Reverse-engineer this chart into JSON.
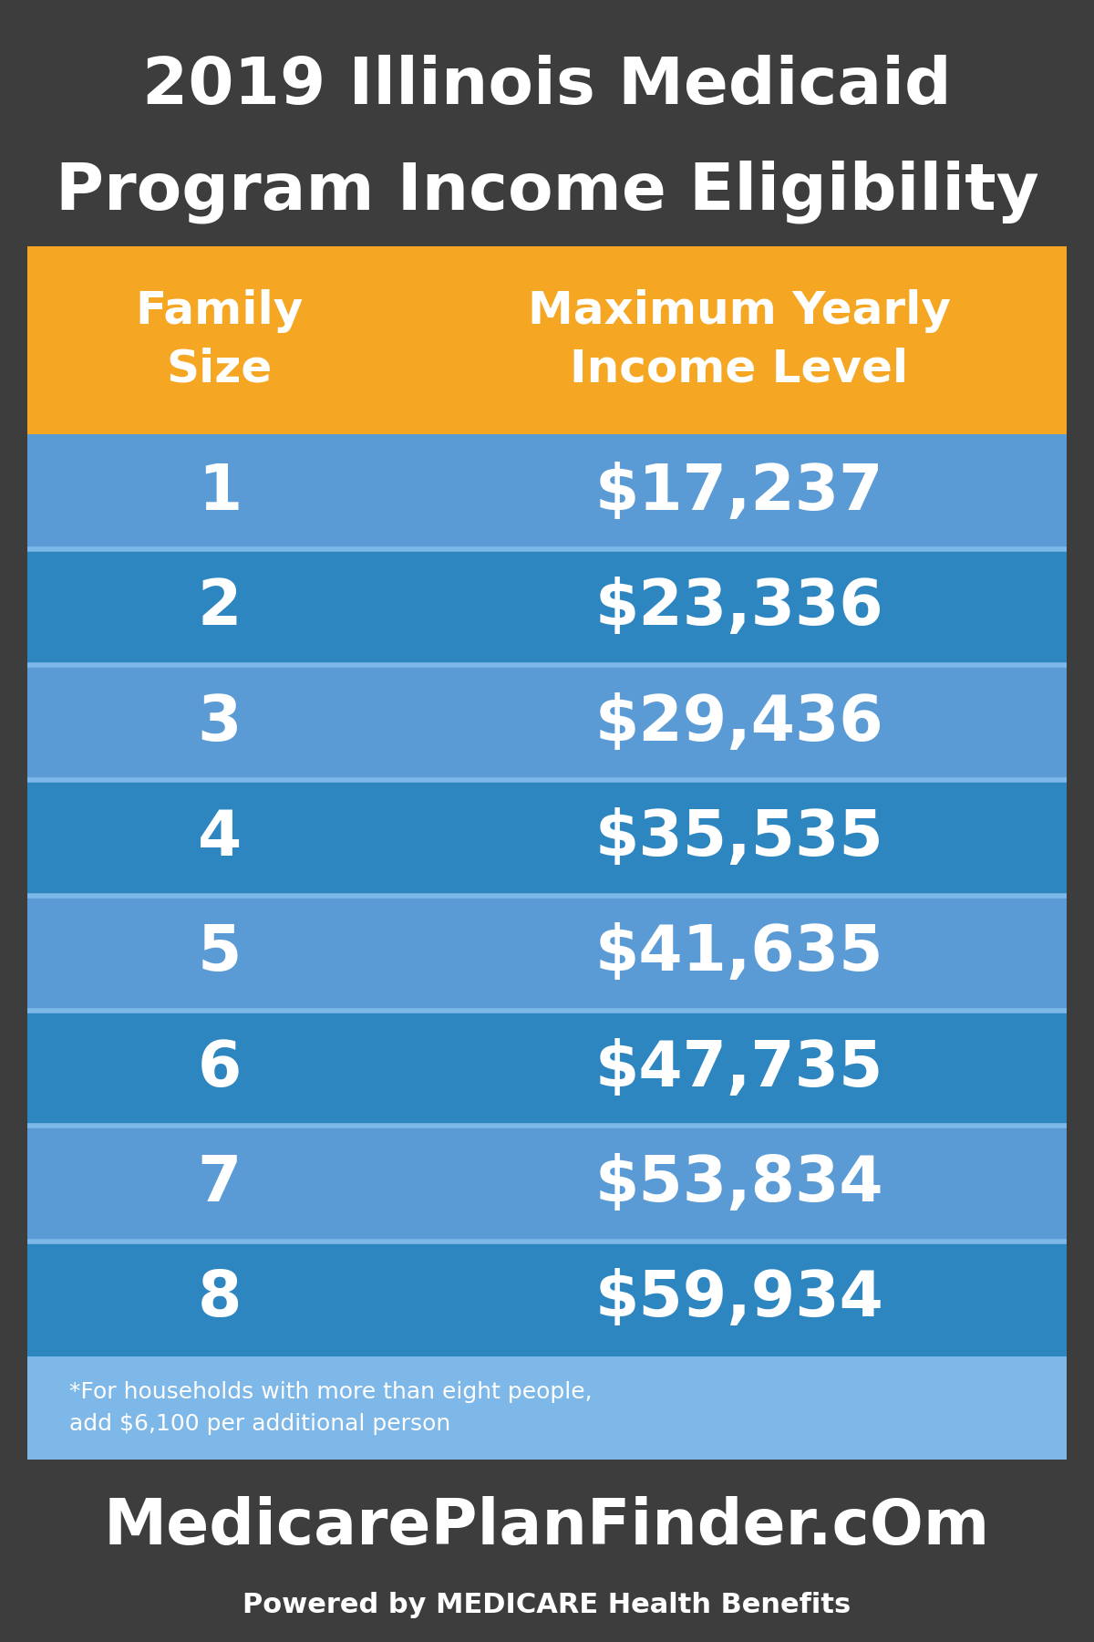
{
  "title_line1": "2019 Illinois Medicaid",
  "title_line2": "Program Income Eligibility",
  "title_bg_color": "#3d3d3d",
  "title_text_color": "#ffffff",
  "header_col1": "Family\nSize",
  "header_col2": "Maximum Yearly\nIncome Level",
  "header_bg_color": "#F5A623",
  "header_text_color": "#ffffff",
  "rows": [
    [
      "1",
      "$17,237"
    ],
    [
      "2",
      "$23,336"
    ],
    [
      "3",
      "$29,436"
    ],
    [
      "4",
      "$35,535"
    ],
    [
      "5",
      "$41,635"
    ],
    [
      "6",
      "$47,735"
    ],
    [
      "7",
      "$53,834"
    ],
    [
      "8",
      "$59,934"
    ]
  ],
  "row_colors_odd": "#5B9BD5",
  "row_colors_even": "#2E86C1",
  "row_text_color": "#ffffff",
  "table_outer_bg": "#ffffff",
  "table_inner_bg": "#7EB8E8",
  "separator_color": "#7EB8E8",
  "footnote": "*For households with more than eight people,\nadd $6,100 per additional person",
  "footnote_text_color": "#ffffff",
  "footnote_bg_color": "#7EB8E8",
  "footer_bg_color": "#3d3d3d",
  "footer_main_text": "MedicarePlanFinder.cOm",
  "footer_sub_text": "Powered by MEDICARE Health Benefits",
  "footer_text_color": "#ffffff",
  "fig_width": 12,
  "fig_height": 18
}
